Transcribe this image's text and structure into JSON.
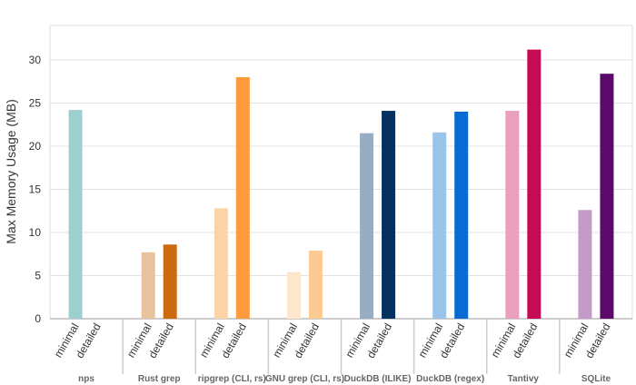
{
  "chart_data": {
    "type": "bar",
    "title": "",
    "xlabel": "",
    "ylabel": "Max Memory Usage (MB)",
    "ylim": [
      0,
      34
    ],
    "yticks": [
      0,
      5,
      10,
      15,
      20,
      25,
      30
    ],
    "grid": true,
    "legend": "none",
    "bar_labels": [
      "minimal",
      "detailed"
    ],
    "groups": [
      {
        "name": "nps",
        "values": [
          24.2,
          null
        ],
        "colors": [
          "#9dcfcf",
          "#9dcfcf"
        ]
      },
      {
        "name": "Rust grep",
        "values": [
          7.7,
          8.6
        ],
        "colors": [
          "#e8c29c",
          "#cc6a10"
        ]
      },
      {
        "name": "ripgrep (CLI, rs)",
        "values": [
          12.8,
          28.0
        ],
        "colors": [
          "#fcd3a6",
          "#fd9a3c"
        ]
      },
      {
        "name": "GNU grep (CLI, rs)",
        "values": [
          5.4,
          7.9
        ],
        "colors": [
          "#fde7cc",
          "#fccb94"
        ]
      },
      {
        "name": "DuckDB (ILIKE)",
        "values": [
          21.5,
          24.1
        ],
        "colors": [
          "#98acc3",
          "#04315f"
        ]
      },
      {
        "name": "DuckDB (regex)",
        "values": [
          21.6,
          24.0
        ],
        "colors": [
          "#9bc4e9",
          "#0a6ad4"
        ]
      },
      {
        "name": "Tantivy",
        "values": [
          24.1,
          31.2
        ],
        "colors": [
          "#eaa0bc",
          "#c50b54"
        ]
      },
      {
        "name": "SQLite",
        "values": [
          12.6,
          28.4
        ],
        "colors": [
          "#c39ac8",
          "#5c0a69"
        ]
      }
    ]
  }
}
